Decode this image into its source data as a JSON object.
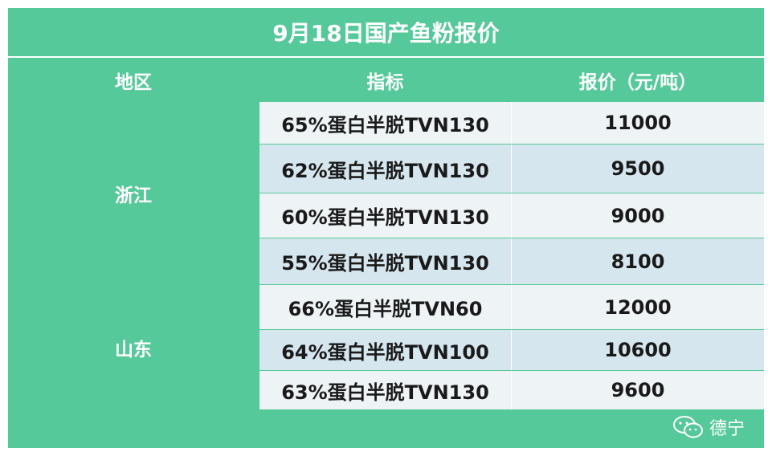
{
  "title": "9月18日国产鱼粉报价",
  "headers": {
    "region": "地区",
    "spec": "指标",
    "price": "报价（元/吨）"
  },
  "groups": [
    {
      "region": "浙江",
      "rows": [
        {
          "spec": "65%蛋白半脱TVN130",
          "price": "11000"
        },
        {
          "spec": "62%蛋白半脱TVN130",
          "price": "9500"
        },
        {
          "spec": "60%蛋白半脱TVN130",
          "price": "9000"
        },
        {
          "spec": "55%蛋白半脱TVN130",
          "price": "8100"
        }
      ]
    },
    {
      "region": "山东",
      "rows": [
        {
          "spec": "66%蛋白半脱TVN60",
          "price": "12000"
        },
        {
          "spec": "64%蛋白半脱TVN100",
          "price": "10600"
        },
        {
          "spec": "63%蛋白半脱TVN130",
          "price": "9600"
        }
      ]
    }
  ],
  "watermark": {
    "text": "德宁",
    "icon": "wechat-icon"
  },
  "colors": {
    "green": "#56c99a",
    "row_light": "#eef3f6",
    "row_dark": "#d6e6ee"
  }
}
